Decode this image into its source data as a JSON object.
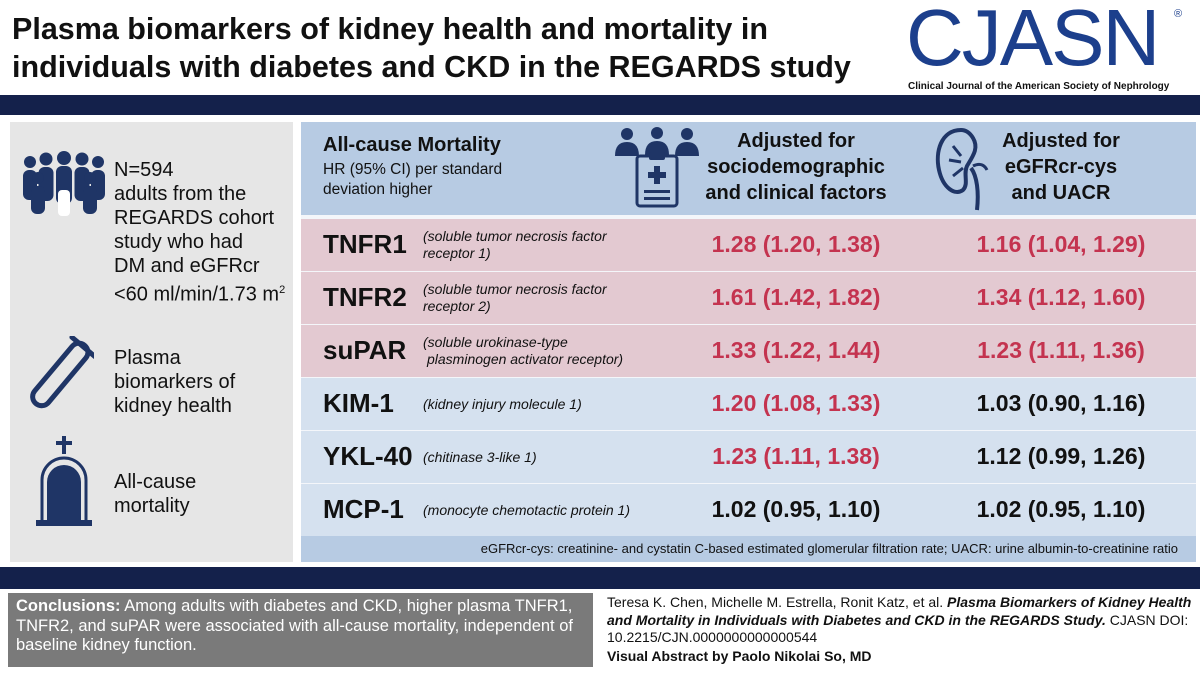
{
  "header": {
    "title": "Plasma biomarkers of kidney health and mortality in individuals with diabetes and CKD in the REGARDS study",
    "logo_text": "CJASN",
    "logo_reg": "®",
    "logo_subtitle": "Clinical Journal of the American Society of Nephrology"
  },
  "left_panel": {
    "cohort_n": "N=594",
    "cohort_line1": "adults from the",
    "cohort_line2": "REGARDS cohort",
    "cohort_line3": "study who had",
    "cohort_line4": "DM and eGFRcr",
    "cohort_line5": "<60 ml/min/1.73 m",
    "cohort_sup": "2",
    "biomarker_line1": "Plasma",
    "biomarker_line2": "biomarkers of",
    "biomarker_line3": "kidney health",
    "outcome_line1": "All-cause",
    "outcome_line2": "mortality",
    "icons": [
      "people-icon",
      "test-tube-icon",
      "gravestone-icon"
    ]
  },
  "table": {
    "title": "All-cause Mortality",
    "subtitle": "HR (95% CI) per standard deviation higher",
    "col1_line1": "Adjusted for",
    "col1_line2": "sociodemographic",
    "col1_line3": "and clinical factors",
    "col2_line1": "Adjusted for",
    "col2_line2": "eGFRcr-cys",
    "col2_line3": "and UACR",
    "header_icons": [
      "clinician-clipboard-icon",
      "kidney-icon"
    ],
    "rows": [
      {
        "name": "TNFR1",
        "desc1": "(soluble tumor necrosis factor",
        "desc2": "receptor 1)",
        "v1": "1.28 (1.20, 1.38)",
        "v2": "1.16 (1.04, 1.29)"
      },
      {
        "name": "TNFR2",
        "desc1": "(soluble tumor necrosis factor",
        "desc2": "receptor 2)",
        "v1": "1.61 (1.42, 1.82)",
        "v2": "1.34 (1.12, 1.60)"
      },
      {
        "name": "suPAR",
        "desc1": "(soluble urokinase-type",
        "desc2": "plasminogen activator receptor)",
        "v1": "1.33 (1.22, 1.44)",
        "v2": "1.23 (1.11, 1.36)"
      },
      {
        "name": "KIM-1",
        "desc1": "(kidney injury molecule 1)",
        "desc2": "",
        "v1": "1.20 (1.08, 1.33)",
        "v2": "1.03 (0.90, 1.16)"
      },
      {
        "name": "YKL-40",
        "desc1": "(chitinase 3-like 1)",
        "desc2": "",
        "v1": "1.23 (1.11, 1.38)",
        "v2": "1.12 (0.99, 1.26)"
      },
      {
        "name": "MCP-1",
        "desc1": "(monocyte chemotactic protein 1)",
        "desc2": "",
        "v1": "1.02 (0.95, 1.10)",
        "v2": "1.02 (0.95, 1.10)"
      }
    ],
    "footnote": "eGFRcr-cys: creatinine- and cystatin C-based estimated glomerular filtration rate; UACR: urine albumin-to-creatinine ratio",
    "colors": {
      "significant": "#c4334f",
      "nonsignificant": "#111111",
      "pink_row": "#e3c9d1",
      "blue_row": "#d5e1ef",
      "header": "#b7cbe3"
    }
  },
  "conclusions": {
    "label": "Conclusions:",
    "text": "Among adults with diabetes and CKD, higher plasma TNFR1, TNFR2, and suPAR were associated with all-cause mortality, independent of baseline kidney function."
  },
  "citation": {
    "authors": "Teresa K. Chen, Michelle M. Estrella, Ronit Katz, et al.",
    "title": "Plasma Biomarkers of Kidney Health and Mortality in Individuals with Diabetes and CKD in the REGARDS Study.",
    "doi": "CJASN DOI: 10.2215/CJN.0000000000000544",
    "credit": "Visual Abstract by Paolo Nikolai So, MD"
  }
}
